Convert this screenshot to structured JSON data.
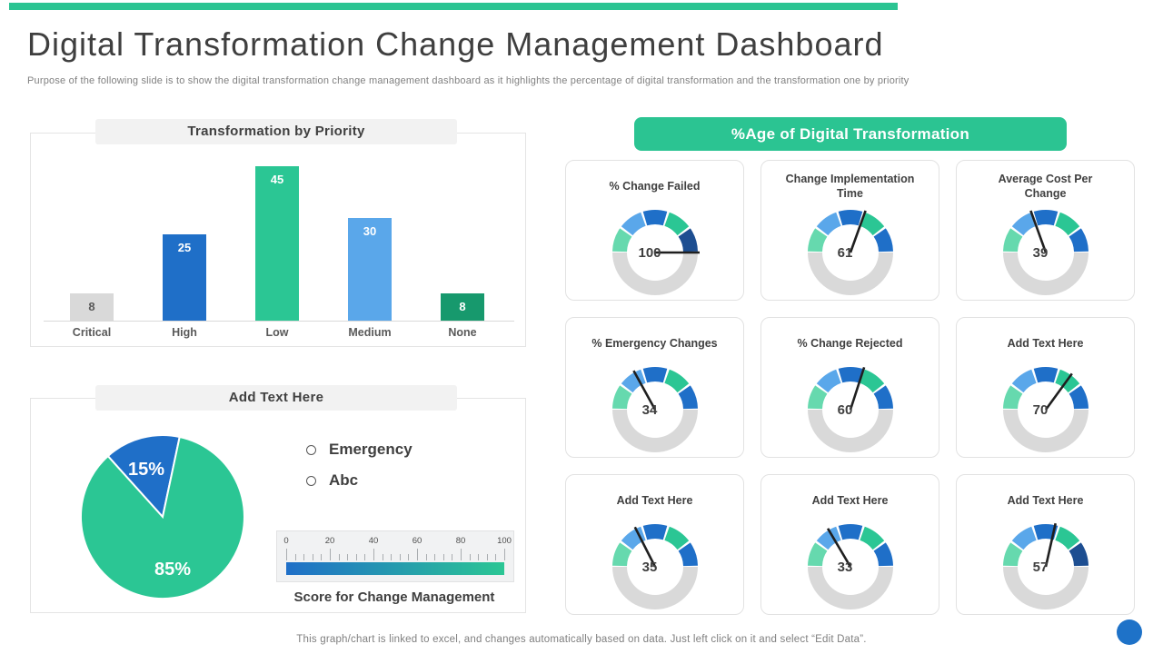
{
  "header": {
    "title": "Digital Transformation Change Management Dashboard",
    "subtitle": "Purpose of the following slide is to show the digital transformation change management dashboard as it highlights the percentage of digital transformation and the transformation one by priority"
  },
  "footer": {
    "note": "This graph/chart is linked to excel, and changes automatically based on data. Just left click on it and select “Edit Data”."
  },
  "colors": {
    "accent_green": "#2bc492",
    "royal_blue": "#1f6fc8",
    "light_blue": "#5aa7ea",
    "mint": "#66d9ae",
    "green": "#2bc694",
    "navy": "#1d4e91",
    "dark_green": "#17996d",
    "gray": "#d9d9d9",
    "corner_dot_blue": "#1e72c8"
  },
  "chart_data": [
    {
      "type": "bar",
      "title": "Transformation by Priority",
      "categories": [
        "Critical",
        "High",
        "Low",
        "Medium",
        "None"
      ],
      "values": [
        8,
        25,
        45,
        30,
        8
      ],
      "bar_colors": [
        "#d9d9d9",
        "#1f6fc8",
        "#2bc694",
        "#5aa7ea",
        "#17996d"
      ],
      "label_colors": [
        "#595959",
        "#ffffff",
        "#ffffff",
        "#ffffff",
        "#ffffff"
      ],
      "ylim": [
        0,
        48
      ],
      "grid": false,
      "data_labels": true
    },
    {
      "type": "pie",
      "title": "Add Text Here",
      "labels": [
        "Emergency",
        "Abc"
      ],
      "values": [
        15,
        85
      ],
      "slice_colors": [
        "#1f6fc8",
        "#2bc694"
      ],
      "data_labels": [
        "15%",
        "85%"
      ],
      "start_angle_deg_from_top": -42,
      "legend_position": "right",
      "scale": {
        "ticks": [
          "0",
          "20",
          "40",
          "60",
          "80",
          "100"
        ],
        "min": 0,
        "max": 100,
        "minor_step": 4,
        "major_step": 20,
        "gradient": [
          "#1f6fc8",
          "#2bc694"
        ],
        "caption": "Score for Change Management"
      }
    },
    {
      "type": "gauge-grid",
      "title": "%Age of Digital Transformation",
      "range": [
        0,
        100
      ],
      "inactive_color": "#d9d9d9",
      "gauges": [
        {
          "label": "% Change Failed",
          "value": 100,
          "segments": [
            "#66d9ae",
            "#5aa7ea",
            "#1f6fc8",
            "#2bc694",
            "#1d4e91"
          ]
        },
        {
          "label": "Change Implementation Time",
          "value": 61,
          "segments": [
            "#66d9ae",
            "#5aa7ea",
            "#1f6fc8",
            "#2bc694",
            "#1f6fc8"
          ]
        },
        {
          "label": "Average Cost Per Change",
          "value": 39,
          "segments": [
            "#66d9ae",
            "#5aa7ea",
            "#1f6fc8",
            "#2bc694",
            "#1f6fc8"
          ]
        },
        {
          "label": "% Emergency Changes",
          "value": 34,
          "segments": [
            "#66d9ae",
            "#5aa7ea",
            "#1f6fc8",
            "#2bc694",
            "#1f6fc8"
          ]
        },
        {
          "label": "% Change Rejected",
          "value": 60,
          "segments": [
            "#66d9ae",
            "#5aa7ea",
            "#1f6fc8",
            "#2bc694",
            "#1f6fc8"
          ]
        },
        {
          "label": "Add Text Here",
          "value": 70,
          "segments": [
            "#66d9ae",
            "#5aa7ea",
            "#1f6fc8",
            "#2bc694",
            "#1f6fc8"
          ]
        },
        {
          "label": "Add Text Here",
          "value": 35,
          "segments": [
            "#66d9ae",
            "#5aa7ea",
            "#1f6fc8",
            "#2bc694",
            "#1f6fc8"
          ]
        },
        {
          "label": "Add Text Here",
          "value": 33,
          "segments": [
            "#66d9ae",
            "#5aa7ea",
            "#1f6fc8",
            "#2bc694",
            "#1f6fc8"
          ]
        },
        {
          "label": "Add Text Here",
          "value": 57,
          "segments": [
            "#66d9ae",
            "#5aa7ea",
            "#1f6fc8",
            "#2bc694",
            "#1d4e91"
          ]
        }
      ]
    }
  ]
}
